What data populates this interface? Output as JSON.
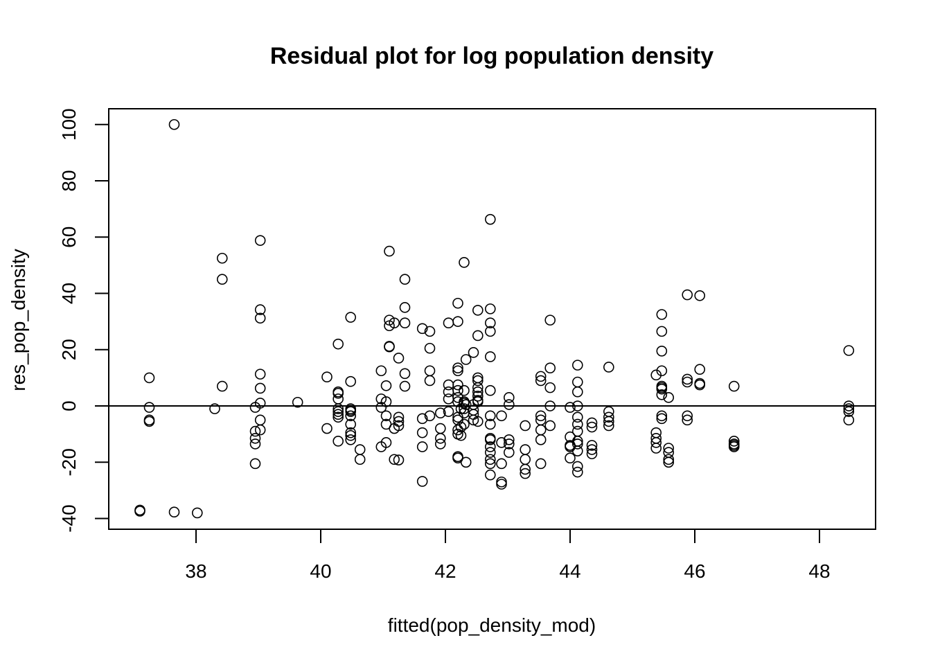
{
  "chart_data": {
    "type": "scatter",
    "title": "Residual plot for log population density",
    "xlabel": "fitted(pop_density_mod)",
    "ylabel": "res_pop_density",
    "xlim": [
      36.6,
      48.9
    ],
    "ylim": [
      -43.8,
      105.6
    ],
    "x_ticks": [
      38,
      40,
      42,
      44,
      46,
      48
    ],
    "y_ticks": [
      -40,
      -20,
      0,
      20,
      40,
      60,
      80,
      100
    ],
    "reference_line": {
      "orientation": "horizontal",
      "y": 0
    },
    "grid": false,
    "legend": "none",
    "marker": "open-circle",
    "colors": {
      "points": "#000000",
      "axes": "#000000",
      "background": "#ffffff"
    },
    "points": [
      [
        37.1,
        -37.4
      ],
      [
        37.1,
        -37.0
      ],
      [
        37.25,
        10.0
      ],
      [
        37.25,
        -0.5
      ],
      [
        37.25,
        -5.5
      ],
      [
        37.25,
        -5.0
      ],
      [
        37.65,
        100.0
      ],
      [
        37.65,
        -37.7
      ],
      [
        38.02,
        -38.0
      ],
      [
        38.3,
        -1.0
      ],
      [
        38.42,
        52.5
      ],
      [
        38.42,
        45.0
      ],
      [
        38.42,
        7.0
      ],
      [
        38.95,
        -0.5
      ],
      [
        38.95,
        -9.0
      ],
      [
        38.95,
        -11.5
      ],
      [
        38.95,
        -13.5
      ],
      [
        38.95,
        -20.5
      ],
      [
        39.03,
        58.8
      ],
      [
        39.03,
        34.2
      ],
      [
        39.03,
        31.2
      ],
      [
        39.03,
        11.3
      ],
      [
        39.03,
        6.3
      ],
      [
        39.03,
        1.0
      ],
      [
        39.03,
        -5.0
      ],
      [
        39.03,
        -8.5
      ],
      [
        39.63,
        1.3
      ],
      [
        40.1,
        10.3
      ],
      [
        40.1,
        -8.0
      ],
      [
        40.28,
        22.0
      ],
      [
        40.28,
        5.0
      ],
      [
        40.28,
        4.5
      ],
      [
        40.28,
        2.5
      ],
      [
        40.28,
        -1.0
      ],
      [
        40.28,
        -2.0
      ],
      [
        40.28,
        -3.0
      ],
      [
        40.28,
        -4.0
      ],
      [
        40.28,
        -12.5
      ],
      [
        40.48,
        31.5
      ],
      [
        40.48,
        8.7
      ],
      [
        40.48,
        -1.0
      ],
      [
        40.48,
        -1.5
      ],
      [
        40.48,
        -2.0
      ],
      [
        40.48,
        -3.5
      ],
      [
        40.48,
        -6.5
      ],
      [
        40.48,
        -9.5
      ],
      [
        40.48,
        -10.5
      ],
      [
        40.48,
        -12.0
      ],
      [
        40.63,
        -15.5
      ],
      [
        40.63,
        -19.0
      ],
      [
        40.97,
        12.5
      ],
      [
        40.97,
        2.5
      ],
      [
        40.97,
        -0.5
      ],
      [
        40.97,
        -14.5
      ],
      [
        41.05,
        7.2
      ],
      [
        41.05,
        1.5
      ],
      [
        41.05,
        -3.5
      ],
      [
        41.05,
        -6.5
      ],
      [
        41.05,
        -13.0
      ],
      [
        41.1,
        55.0
      ],
      [
        41.1,
        30.5
      ],
      [
        41.1,
        28.5
      ],
      [
        41.1,
        21.2
      ],
      [
        41.1,
        21.0
      ],
      [
        41.18,
        29.5
      ],
      [
        41.18,
        -8.0
      ],
      [
        41.18,
        -19.0
      ],
      [
        41.25,
        17.0
      ],
      [
        41.25,
        -4.0
      ],
      [
        41.25,
        -5.5
      ],
      [
        41.25,
        -7.0
      ],
      [
        41.25,
        -19.2
      ],
      [
        41.35,
        45.0
      ],
      [
        41.35,
        35.0
      ],
      [
        41.35,
        29.5
      ],
      [
        41.35,
        11.5
      ],
      [
        41.35,
        7.0
      ],
      [
        41.63,
        27.5
      ],
      [
        41.63,
        -4.5
      ],
      [
        41.63,
        -9.5
      ],
      [
        41.63,
        -14.5
      ],
      [
        41.63,
        -26.8
      ],
      [
        41.75,
        26.5
      ],
      [
        41.75,
        20.5
      ],
      [
        41.75,
        12.5
      ],
      [
        41.75,
        9.0
      ],
      [
        41.75,
        -3.5
      ],
      [
        41.92,
        -2.5
      ],
      [
        41.92,
        -8.0
      ],
      [
        41.92,
        -11.5
      ],
      [
        41.92,
        -13.5
      ],
      [
        42.05,
        29.5
      ],
      [
        42.05,
        7.5
      ],
      [
        42.05,
        5.0
      ],
      [
        42.05,
        2.5
      ],
      [
        42.05,
        -2.0
      ],
      [
        42.2,
        36.5
      ],
      [
        42.2,
        30.0
      ],
      [
        42.2,
        13.5
      ],
      [
        42.2,
        12.5
      ],
      [
        42.2,
        7.5
      ],
      [
        42.2,
        5.5
      ],
      [
        42.2,
        3.0
      ],
      [
        42.2,
        1.5
      ],
      [
        42.2,
        -4.0
      ],
      [
        42.2,
        -5.0
      ],
      [
        42.2,
        -8.5
      ],
      [
        42.2,
        -10.0
      ],
      [
        42.2,
        -18.0
      ],
      [
        42.2,
        -18.5
      ],
      [
        42.25,
        -1.0
      ],
      [
        42.25,
        -7.5
      ],
      [
        42.25,
        -10.5
      ],
      [
        42.3,
        51.0
      ],
      [
        42.3,
        5.5
      ],
      [
        42.3,
        1.5
      ],
      [
        42.3,
        1.0
      ],
      [
        42.3,
        -1.0
      ],
      [
        42.3,
        -2.5
      ],
      [
        42.3,
        -6.5
      ],
      [
        42.33,
        16.5
      ],
      [
        42.33,
        0.5
      ],
      [
        42.33,
        -20.0
      ],
      [
        42.45,
        19.0
      ],
      [
        42.45,
        0.5
      ],
      [
        42.45,
        -1.5
      ],
      [
        42.45,
        -3.0
      ],
      [
        42.45,
        -5.0
      ],
      [
        42.52,
        34.0
      ],
      [
        42.52,
        25.0
      ],
      [
        42.52,
        10.0
      ],
      [
        42.52,
        9.0
      ],
      [
        42.52,
        6.5
      ],
      [
        42.52,
        5.0
      ],
      [
        42.52,
        3.5
      ],
      [
        42.52,
        2.0
      ],
      [
        42.52,
        1.5
      ],
      [
        42.52,
        -5.5
      ],
      [
        42.72,
        66.3
      ],
      [
        42.72,
        34.5
      ],
      [
        42.72,
        29.5
      ],
      [
        42.72,
        26.5
      ],
      [
        42.72,
        17.5
      ],
      [
        42.72,
        5.5
      ],
      [
        42.72,
        -3.5
      ],
      [
        42.72,
        -6.5
      ],
      [
        42.72,
        -11.5
      ],
      [
        42.72,
        -12.0
      ],
      [
        42.72,
        -14.5
      ],
      [
        42.72,
        -16.5
      ],
      [
        42.72,
        -19.0
      ],
      [
        42.72,
        -20.5
      ],
      [
        42.72,
        -24.5
      ],
      [
        42.9,
        -3.5
      ],
      [
        42.9,
        -13.0
      ],
      [
        42.9,
        -20.5
      ],
      [
        42.9,
        -27.0
      ],
      [
        42.9,
        -27.8
      ],
      [
        43.02,
        3.0
      ],
      [
        43.02,
        0.5
      ],
      [
        43.02,
        -12.0
      ],
      [
        43.02,
        -13.5
      ],
      [
        43.02,
        -16.5
      ],
      [
        43.28,
        -7.0
      ],
      [
        43.28,
        -15.5
      ],
      [
        43.28,
        -19.0
      ],
      [
        43.28,
        -22.5
      ],
      [
        43.28,
        -24.0
      ],
      [
        43.53,
        10.5
      ],
      [
        43.53,
        9.0
      ],
      [
        43.53,
        -3.5
      ],
      [
        43.53,
        -5.0
      ],
      [
        43.53,
        -8.5
      ],
      [
        43.53,
        -12.0
      ],
      [
        43.53,
        -20.5
      ],
      [
        43.68,
        30.5
      ],
      [
        43.68,
        13.5
      ],
      [
        43.68,
        6.5
      ],
      [
        43.68,
        0.0
      ],
      [
        43.68,
        -7.0
      ],
      [
        44.0,
        -0.5
      ],
      [
        44.0,
        -11.0
      ],
      [
        44.0,
        -14.0
      ],
      [
        44.0,
        -14.5
      ],
      [
        44.0,
        -18.5
      ],
      [
        44.12,
        14.5
      ],
      [
        44.12,
        8.5
      ],
      [
        44.12,
        5.0
      ],
      [
        44.12,
        0.0
      ],
      [
        44.12,
        -4.0
      ],
      [
        44.12,
        -6.5
      ],
      [
        44.12,
        -9.0
      ],
      [
        44.12,
        -12.5
      ],
      [
        44.12,
        -13.5
      ],
      [
        44.12,
        -16.0
      ],
      [
        44.12,
        -21.5
      ],
      [
        44.12,
        -23.5
      ],
      [
        44.35,
        -6.0
      ],
      [
        44.35,
        -7.5
      ],
      [
        44.35,
        -14.0
      ],
      [
        44.35,
        -15.5
      ],
      [
        44.35,
        -17.0
      ],
      [
        44.62,
        13.8
      ],
      [
        44.62,
        -2.0
      ],
      [
        44.62,
        -4.0
      ],
      [
        44.62,
        -5.5
      ],
      [
        44.62,
        -7.0
      ],
      [
        45.38,
        11.0
      ],
      [
        45.38,
        -9.5
      ],
      [
        45.38,
        -11.5
      ],
      [
        45.38,
        -13.0
      ],
      [
        45.38,
        -15.0
      ],
      [
        45.47,
        32.5
      ],
      [
        45.47,
        26.5
      ],
      [
        45.47,
        19.5
      ],
      [
        45.47,
        12.5
      ],
      [
        45.47,
        7.0
      ],
      [
        45.47,
        6.5
      ],
      [
        45.47,
        6.0
      ],
      [
        45.47,
        4.0
      ],
      [
        45.47,
        -3.5
      ],
      [
        45.47,
        -4.5
      ],
      [
        45.58,
        3.0
      ],
      [
        45.58,
        -15.0
      ],
      [
        45.58,
        -16.5
      ],
      [
        45.58,
        -19.0
      ],
      [
        45.58,
        -20.0
      ],
      [
        45.88,
        39.5
      ],
      [
        45.88,
        9.5
      ],
      [
        45.88,
        8.5
      ],
      [
        45.88,
        -3.5
      ],
      [
        45.88,
        -5.0
      ],
      [
        46.08,
        39.2
      ],
      [
        46.08,
        13.0
      ],
      [
        46.08,
        8.0
      ],
      [
        46.08,
        7.5
      ],
      [
        46.63,
        7.0
      ],
      [
        46.63,
        -12.5
      ],
      [
        46.63,
        -13.5
      ],
      [
        46.63,
        -14.0
      ],
      [
        46.63,
        -14.5
      ],
      [
        48.47,
        19.7
      ],
      [
        48.47,
        0.0
      ],
      [
        48.47,
        -1.0
      ],
      [
        48.47,
        -2.0
      ],
      [
        48.47,
        -5.0
      ]
    ]
  }
}
